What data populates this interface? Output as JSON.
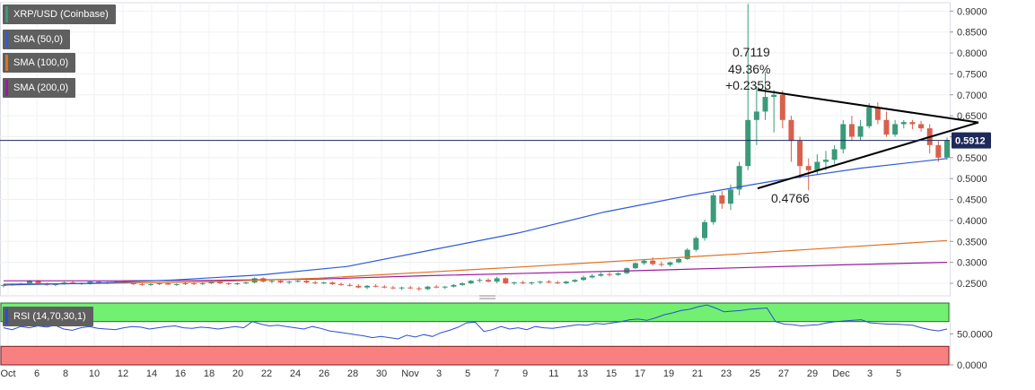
{
  "legend": {
    "main": "XRP/USD (Coinbase)",
    "sma50": "SMA (50,0)",
    "sma100": "SMA (100,0)",
    "sma200": "SMA (200,0)",
    "rsi": "RSI (14,70,30,1)"
  },
  "annotations": {
    "high_price": "0.7119",
    "pct_change": "49.36%",
    "abs_change": "+0.2353",
    "low_price": "0.4766"
  },
  "price_badge": "0.5912",
  "colors": {
    "up": "#3a9a7a",
    "down": "#d9604c",
    "sma50": "#2e5ad6",
    "sma100": "#e07020",
    "sma200": "#9a1aa0",
    "rsi_line": "#2a4fd0",
    "rsi_overbought": "#72f072",
    "rsi_oversold": "#f98080",
    "price_line": "#1e2a5a",
    "badge": "#1e2a5a"
  },
  "chart_data": [
    {
      "type": "candlestick",
      "title": "XRP/USD (Coinbase)",
      "x": [
        "Oct",
        "6",
        "8",
        "10",
        "12",
        "14",
        "16",
        "18",
        "20",
        "22",
        "24",
        "26",
        "28",
        "30",
        "Nov",
        "3",
        "5",
        "7",
        "9",
        "11",
        "13",
        "15",
        "17",
        "19",
        "21",
        "23",
        "25",
        "27",
        "29",
        "Dec",
        "3",
        "5"
      ],
      "ylim": [
        0.22,
        0.92
      ],
      "y_ticks": [
        "0.2500",
        "0.3000",
        "0.3500",
        "0.4000",
        "0.4500",
        "0.5000",
        "0.5500",
        "0.6000",
        "0.6500",
        "0.7000",
        "0.7500",
        "0.8000",
        "0.8500",
        "0.9000"
      ],
      "last_price": 0.5912,
      "candles": [
        [
          0.245,
          0.248,
          0.24,
          0.246
        ],
        [
          0.246,
          0.25,
          0.244,
          0.248
        ],
        [
          0.248,
          0.252,
          0.246,
          0.25
        ],
        [
          0.25,
          0.258,
          0.249,
          0.256
        ],
        [
          0.256,
          0.258,
          0.248,
          0.25
        ],
        [
          0.25,
          0.252,
          0.244,
          0.246
        ],
        [
          0.246,
          0.25,
          0.243,
          0.248
        ],
        [
          0.248,
          0.254,
          0.247,
          0.252
        ],
        [
          0.252,
          0.256,
          0.248,
          0.25
        ],
        [
          0.25,
          0.252,
          0.246,
          0.248
        ],
        [
          0.248,
          0.256,
          0.247,
          0.254
        ],
        [
          0.254,
          0.256,
          0.248,
          0.25
        ],
        [
          0.25,
          0.254,
          0.248,
          0.252
        ],
        [
          0.252,
          0.256,
          0.25,
          0.254
        ],
        [
          0.254,
          0.256,
          0.249,
          0.25
        ],
        [
          0.25,
          0.252,
          0.246,
          0.248
        ],
        [
          0.248,
          0.25,
          0.244,
          0.246
        ],
        [
          0.246,
          0.25,
          0.244,
          0.248
        ],
        [
          0.248,
          0.252,
          0.246,
          0.25
        ],
        [
          0.25,
          0.252,
          0.246,
          0.247
        ],
        [
          0.247,
          0.25,
          0.244,
          0.248
        ],
        [
          0.248,
          0.252,
          0.246,
          0.25
        ],
        [
          0.25,
          0.252,
          0.246,
          0.248
        ],
        [
          0.248,
          0.252,
          0.246,
          0.25
        ],
        [
          0.25,
          0.256,
          0.248,
          0.254
        ],
        [
          0.254,
          0.256,
          0.248,
          0.25
        ],
        [
          0.25,
          0.252,
          0.246,
          0.248
        ],
        [
          0.248,
          0.252,
          0.246,
          0.25
        ],
        [
          0.25,
          0.254,
          0.248,
          0.252
        ],
        [
          0.252,
          0.264,
          0.25,
          0.262
        ],
        [
          0.262,
          0.264,
          0.252,
          0.254
        ],
        [
          0.254,
          0.258,
          0.25,
          0.256
        ],
        [
          0.256,
          0.258,
          0.25,
          0.252
        ],
        [
          0.252,
          0.256,
          0.248,
          0.254
        ],
        [
          0.254,
          0.258,
          0.252,
          0.256
        ],
        [
          0.256,
          0.258,
          0.25,
          0.252
        ],
        [
          0.252,
          0.256,
          0.248,
          0.25
        ],
        [
          0.25,
          0.254,
          0.248,
          0.252
        ],
        [
          0.252,
          0.254,
          0.246,
          0.248
        ],
        [
          0.248,
          0.252,
          0.244,
          0.246
        ],
        [
          0.246,
          0.25,
          0.242,
          0.244
        ],
        [
          0.244,
          0.248,
          0.238,
          0.24
        ],
        [
          0.24,
          0.246,
          0.236,
          0.244
        ],
        [
          0.244,
          0.248,
          0.24,
          0.242
        ],
        [
          0.242,
          0.246,
          0.238,
          0.24
        ],
        [
          0.24,
          0.244,
          0.236,
          0.238
        ],
        [
          0.238,
          0.242,
          0.234,
          0.24
        ],
        [
          0.24,
          0.244,
          0.236,
          0.238
        ],
        [
          0.238,
          0.242,
          0.232,
          0.236
        ],
        [
          0.236,
          0.244,
          0.234,
          0.242
        ],
        [
          0.242,
          0.246,
          0.238,
          0.24
        ],
        [
          0.24,
          0.244,
          0.236,
          0.242
        ],
        [
          0.242,
          0.248,
          0.24,
          0.246
        ],
        [
          0.246,
          0.252,
          0.244,
          0.25
        ],
        [
          0.25,
          0.258,
          0.248,
          0.256
        ],
        [
          0.256,
          0.262,
          0.252,
          0.258
        ],
        [
          0.258,
          0.262,
          0.252,
          0.254
        ],
        [
          0.254,
          0.266,
          0.25,
          0.262
        ],
        [
          0.262,
          0.264,
          0.248,
          0.25
        ],
        [
          0.25,
          0.254,
          0.246,
          0.252
        ],
        [
          0.252,
          0.256,
          0.248,
          0.25
        ],
        [
          0.25,
          0.254,
          0.246,
          0.252
        ],
        [
          0.252,
          0.256,
          0.248,
          0.254
        ],
        [
          0.254,
          0.258,
          0.25,
          0.252
        ],
        [
          0.252,
          0.256,
          0.248,
          0.25
        ],
        [
          0.25,
          0.256,
          0.248,
          0.254
        ],
        [
          0.254,
          0.26,
          0.252,
          0.258
        ],
        [
          0.258,
          0.268,
          0.256,
          0.264
        ],
        [
          0.264,
          0.272,
          0.262,
          0.268
        ],
        [
          0.268,
          0.276,
          0.266,
          0.272
        ],
        [
          0.272,
          0.276,
          0.266,
          0.27
        ],
        [
          0.27,
          0.276,
          0.268,
          0.274
        ],
        [
          0.274,
          0.288,
          0.272,
          0.286
        ],
        [
          0.286,
          0.3,
          0.284,
          0.298
        ],
        [
          0.298,
          0.308,
          0.294,
          0.304
        ],
        [
          0.304,
          0.312,
          0.292,
          0.296
        ],
        [
          0.296,
          0.302,
          0.29,
          0.294
        ],
        [
          0.294,
          0.302,
          0.29,
          0.3
        ],
        [
          0.3,
          0.312,
          0.298,
          0.308
        ],
        [
          0.308,
          0.334,
          0.306,
          0.33
        ],
        [
          0.33,
          0.362,
          0.326,
          0.358
        ],
        [
          0.358,
          0.402,
          0.352,
          0.396
        ],
        [
          0.396,
          0.466,
          0.39,
          0.46
        ],
        [
          0.46,
          0.47,
          0.428,
          0.44
        ],
        [
          0.44,
          0.486,
          0.425,
          0.474
        ],
        [
          0.474,
          0.54,
          0.46,
          0.53
        ],
        [
          0.53,
          0.917,
          0.52,
          0.64
        ],
        [
          0.64,
          0.72,
          0.58,
          0.66
        ],
        [
          0.66,
          0.755,
          0.64,
          0.695
        ],
        [
          0.695,
          0.712,
          0.61,
          0.7
        ],
        [
          0.7,
          0.71,
          0.62,
          0.64
        ],
        [
          0.64,
          0.65,
          0.54,
          0.59
        ],
        [
          0.59,
          0.6,
          0.5,
          0.53
        ],
        [
          0.53,
          0.548,
          0.472,
          0.52
        ],
        [
          0.52,
          0.558,
          0.51,
          0.54
        ],
        [
          0.54,
          0.566,
          0.52,
          0.545
        ],
        [
          0.545,
          0.58,
          0.535,
          0.57
        ],
        [
          0.57,
          0.64,
          0.56,
          0.63
        ],
        [
          0.63,
          0.65,
          0.59,
          0.6
        ],
        [
          0.6,
          0.64,
          0.592,
          0.625
        ],
        [
          0.625,
          0.68,
          0.62,
          0.67
        ],
        [
          0.67,
          0.682,
          0.63,
          0.64
        ],
        [
          0.64,
          0.66,
          0.6,
          0.605
        ],
        [
          0.605,
          0.64,
          0.6,
          0.63
        ],
        [
          0.63,
          0.64,
          0.62,
          0.635
        ],
        [
          0.635,
          0.64,
          0.618,
          0.63
        ],
        [
          0.63,
          0.638,
          0.612,
          0.62
        ],
        [
          0.62,
          0.63,
          0.56,
          0.58
        ],
        [
          0.58,
          0.59,
          0.54,
          0.55
        ],
        [
          0.55,
          0.598,
          0.545,
          0.591
        ]
      ],
      "sma50": [
        0.246,
        0.25,
        0.258,
        0.27,
        0.29,
        0.33,
        0.37,
        0.42,
        0.46,
        0.495,
        0.525,
        0.548
      ],
      "sma100": [
        0.248,
        0.25,
        0.254,
        0.262,
        0.276,
        0.29,
        0.305,
        0.32,
        0.336,
        0.352
      ],
      "sma200": [
        0.256,
        0.256,
        0.257,
        0.26,
        0.268,
        0.274,
        0.28,
        0.287,
        0.294,
        0.3
      ],
      "annotation_text": [
        "0.7119",
        "49.36%",
        "+0.2353",
        "0.4766"
      ]
    },
    {
      "type": "line",
      "title": "RSI (14,70,30,1)",
      "ylim": [
        0,
        100
      ],
      "y_ticks": [
        "0.0000",
        "50.0000"
      ],
      "overbought": 70,
      "oversold": 30,
      "values": [
        60,
        57,
        62,
        60,
        63,
        61,
        64,
        58,
        56,
        60,
        62,
        59,
        58,
        57,
        60,
        62,
        61,
        58,
        60,
        62,
        63,
        60,
        59,
        61,
        60,
        58,
        60,
        62,
        60,
        70,
        66,
        63,
        64,
        62,
        60,
        58,
        62,
        59,
        55,
        53,
        51,
        49,
        47,
        44,
        46,
        44,
        42,
        48,
        45,
        49,
        46,
        52,
        56,
        61,
        68,
        69,
        54,
        57,
        62,
        58,
        60,
        57,
        62,
        60,
        59,
        61,
        63,
        65,
        64,
        67,
        66,
        68,
        70,
        73,
        74,
        72,
        76,
        81,
        84,
        88,
        90,
        94,
        97,
        92,
        86,
        87,
        88,
        90,
        91,
        92,
        70,
        66,
        65,
        63,
        64,
        65,
        68,
        70,
        71,
        72,
        73,
        68,
        67,
        66,
        66,
        65,
        64,
        60,
        57,
        55,
        58
      ]
    }
  ]
}
